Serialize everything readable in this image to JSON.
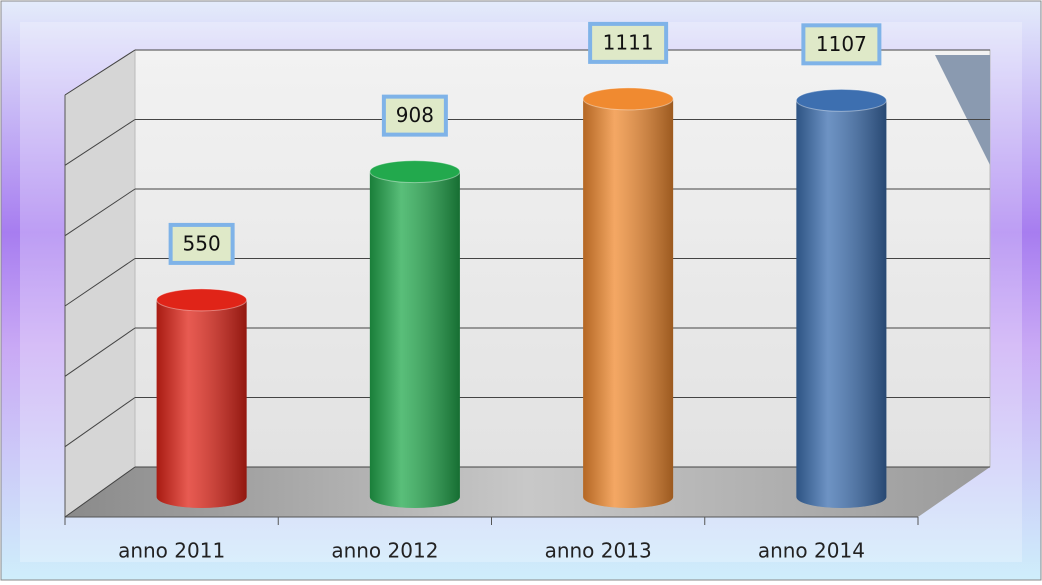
{
  "chart_data": {
    "type": "bar",
    "categories": [
      "anno 2011",
      "anno 2012",
      "anno 2013",
      "anno 2014"
    ],
    "values": [
      550,
      908,
      1111,
      1107
    ],
    "colors": [
      "#e02418",
      "#22a94d",
      "#f08a30",
      "#3d6fb0"
    ],
    "ylim": [
      0,
      1200
    ],
    "yticks": [
      0,
      200,
      400,
      600,
      800,
      1000,
      1200
    ],
    "grid": true
  }
}
